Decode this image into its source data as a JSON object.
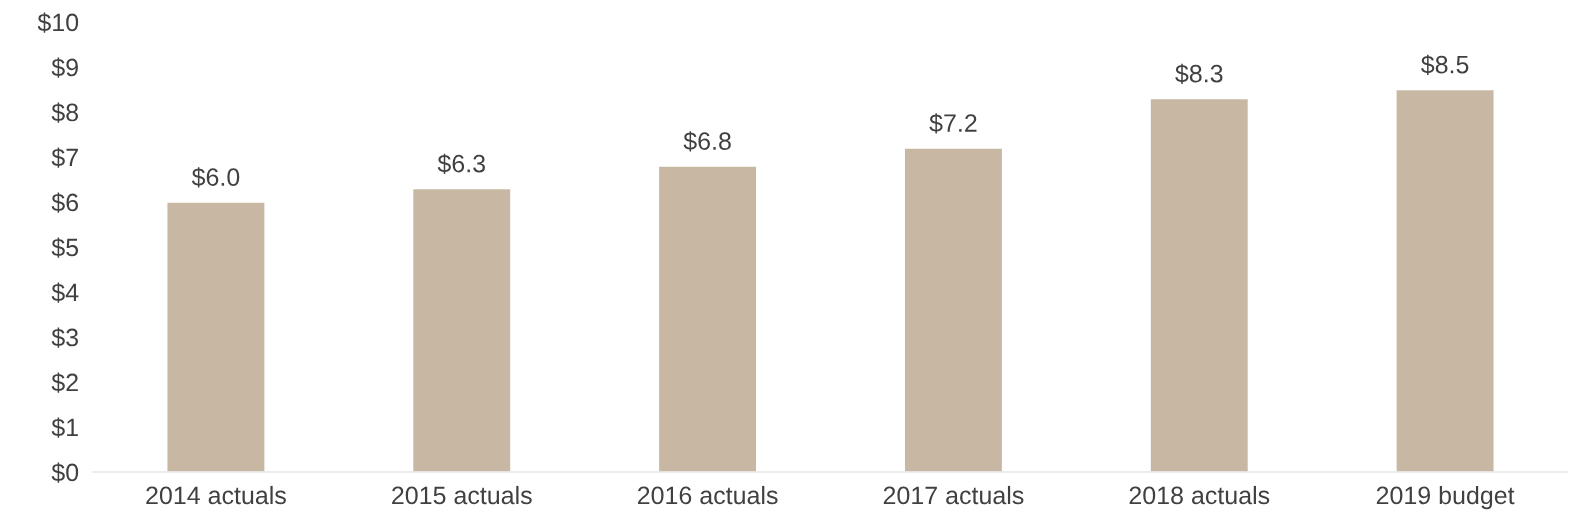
{
  "chart_data": {
    "type": "bar",
    "categories": [
      "2014 actuals",
      "2015 actuals",
      "2016 actuals",
      "2017 actuals",
      "2018 actuals",
      "2019 budget"
    ],
    "values": [
      6.0,
      6.3,
      6.8,
      7.2,
      8.3,
      8.5
    ],
    "value_labels": [
      "$6.0",
      "$6.3",
      "$6.8",
      "$7.2",
      "$8.3",
      "$8.5"
    ],
    "color": "#c8b8a3",
    "ylim": [
      0,
      10
    ],
    "yticks": [
      {
        "value": 0,
        "label": "$0"
      },
      {
        "value": 1,
        "label": "$1"
      },
      {
        "value": 2,
        "label": "$2"
      },
      {
        "value": 3,
        "label": "$3"
      },
      {
        "value": 4,
        "label": "$4"
      },
      {
        "value": 5,
        "label": "$5"
      },
      {
        "value": 6,
        "label": "$6"
      },
      {
        "value": 7,
        "label": "$7"
      },
      {
        "value": 8,
        "label": "$8"
      },
      {
        "value": 9,
        "label": "$9"
      },
      {
        "value": 10,
        "label": "$10"
      }
    ],
    "grid": false,
    "legend": false
  }
}
